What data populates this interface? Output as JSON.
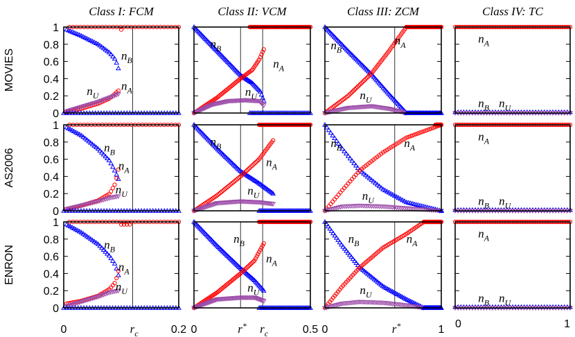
{
  "chart_data": {
    "type": "scatter",
    "grid": false,
    "legend": "none",
    "columns": [
      {
        "title": "Class I: FCM",
        "xlim": [
          0,
          0.2
        ],
        "xticks": [
          {
            "v": 0,
            "t": "0"
          },
          {
            "v": 0.12,
            "t": "r",
            "sub": "c"
          },
          {
            "v": 0.2,
            "t": "0.2"
          }
        ],
        "vlines": [
          0.12
        ]
      },
      {
        "title": "Class II: VCM",
        "xlim": [
          0,
          0.5
        ],
        "xticks": [
          {
            "v": 0,
            "t": "0"
          },
          {
            "v": 0.2,
            "t": "r",
            "sup": "*"
          },
          {
            "v": 0.295,
            "t": "r",
            "sub": "c"
          },
          {
            "v": 0.5,
            "t": "0.5"
          }
        ],
        "vlines": [
          0.2,
          0.295
        ]
      },
      {
        "title": "Class III: ZCM",
        "xlim": [
          0,
          1
        ],
        "xticks": [
          {
            "v": 0,
            "t": "0"
          },
          {
            "v": 0.6,
            "t": "r",
            "sup": "*"
          },
          {
            "v": 1,
            "t": "1"
          }
        ],
        "vlines": [
          0.6
        ]
      },
      {
        "title": "Class IV: TC",
        "xlim": [
          0,
          1
        ],
        "xticks": [
          {
            "v": 0,
            "t": "0"
          },
          {
            "v": 1,
            "t": "1"
          }
        ],
        "vlines": []
      }
    ],
    "rows": [
      "MOVIES",
      "AS2006",
      "ENRON"
    ],
    "ylim": [
      0,
      1
    ],
    "yticks": [
      "0",
      "0.2",
      "0.4",
      "0.6",
      "0.8",
      "1"
    ],
    "labels": {
      "nA": [
        "n",
        "A"
      ],
      "nB": [
        "n",
        "B"
      ],
      "nU": [
        "n",
        "U"
      ]
    },
    "colors": {
      "nA": "#ff0000",
      "nB": "#0000ff",
      "nU": "#9b4aa8"
    },
    "panels": [
      [
        {
          "nB": [
            [
              0.005,
              0.97
            ],
            [
              0.03,
              0.9
            ],
            [
              0.06,
              0.8
            ],
            [
              0.08,
              0.7
            ],
            [
              0.09,
              0.62
            ],
            [
              0.095,
              0.52
            ]
          ],
          "nA": [
            [
              0.005,
              0.01
            ],
            [
              0.03,
              0.05
            ],
            [
              0.06,
              0.11
            ],
            [
              0.08,
              0.17
            ],
            [
              0.095,
              0.26
            ]
          ],
          "nU": [
            [
              0.005,
              0.02
            ],
            [
              0.03,
              0.07
            ],
            [
              0.06,
              0.13
            ],
            [
              0.08,
              0.18
            ],
            [
              0.095,
              0.22
            ]
          ],
          "nA_upper": [
            [
              0.01,
              1
            ],
            [
              0.2,
              1
            ]
          ],
          "nB_lower": [
            [
              0.0,
              0.0
            ],
            [
              0.2,
              0.0
            ]
          ],
          "extra": [
            [
              0.1,
              0.97
            ]
          ]
        },
        {
          "nB": [
            [
              0,
              1
            ],
            [
              0.1,
              0.72
            ],
            [
              0.2,
              0.44
            ],
            [
              0.25,
              0.35
            ],
            [
              0.285,
              0.25
            ],
            [
              0.3,
              0.14
            ]
          ],
          "nA": [
            [
              0,
              0
            ],
            [
              0.1,
              0.18
            ],
            [
              0.2,
              0.4
            ],
            [
              0.25,
              0.5
            ],
            [
              0.28,
              0.62
            ],
            [
              0.3,
              0.74
            ]
          ],
          "nU": [
            [
              0,
              0
            ],
            [
              0.08,
              0.1
            ],
            [
              0.15,
              0.14
            ],
            [
              0.22,
              0.15
            ],
            [
              0.28,
              0.14
            ],
            [
              0.3,
              0.09
            ]
          ],
          "nA_upper": [
            [
              0.24,
              1
            ],
            [
              0.5,
              1
            ]
          ],
          "nB_lower": [
            [
              0.24,
              0
            ],
            [
              0.5,
              0
            ]
          ]
        },
        {
          "nB": [
            [
              0,
              1
            ],
            [
              0.2,
              0.72
            ],
            [
              0.4,
              0.45
            ],
            [
              0.55,
              0.22
            ],
            [
              0.7,
              0.0
            ]
          ],
          "nA": [
            [
              0,
              0
            ],
            [
              0.2,
              0.2
            ],
            [
              0.4,
              0.46
            ],
            [
              0.55,
              0.72
            ],
            [
              0.7,
              1
            ]
          ],
          "nU": [
            [
              0,
              0
            ],
            [
              0.2,
              0.06
            ],
            [
              0.4,
              0.08
            ],
            [
              0.55,
              0.05
            ],
            [
              0.7,
              0
            ]
          ],
          "nA_upper": [
            [
              0.7,
              1
            ],
            [
              1,
              1
            ]
          ],
          "nB_lower": [
            [
              0.7,
              0
            ],
            [
              1,
              0
            ]
          ]
        },
        {
          "nA_upper": [
            [
              0,
              1
            ],
            [
              1,
              1
            ]
          ],
          "nB_lower": [
            [
              0,
              0.01
            ],
            [
              1,
              0.01
            ]
          ],
          "nU_lower": [
            [
              0,
              0
            ],
            [
              1,
              0
            ]
          ]
        }
      ],
      [
        {
          "nB": [
            [
              0.005,
              0.97
            ],
            [
              0.03,
              0.88
            ],
            [
              0.06,
              0.72
            ],
            [
              0.08,
              0.58
            ],
            [
              0.09,
              0.45
            ],
            [
              0.095,
              0.37
            ]
          ],
          "nA": [
            [
              0.005,
              0.02
            ],
            [
              0.03,
              0.06
            ],
            [
              0.06,
              0.12
            ],
            [
              0.08,
              0.2
            ],
            [
              0.09,
              0.32
            ],
            [
              0.095,
              0.48
            ]
          ],
          "nU": [
            [
              0.005,
              0.02
            ],
            [
              0.03,
              0.06
            ],
            [
              0.06,
              0.11
            ],
            [
              0.08,
              0.15
            ],
            [
              0.095,
              0.17
            ]
          ],
          "nA_upper": [
            [
              0.01,
              1
            ],
            [
              0.2,
              1
            ]
          ],
          "nB_lower": [
            [
              0,
              0
            ],
            [
              0.2,
              0
            ]
          ]
        },
        {
          "nB": [
            [
              0,
              1
            ],
            [
              0.1,
              0.72
            ],
            [
              0.2,
              0.46
            ],
            [
              0.28,
              0.32
            ],
            [
              0.34,
              0.2
            ]
          ],
          "nA": [
            [
              0,
              0
            ],
            [
              0.1,
              0.18
            ],
            [
              0.2,
              0.4
            ],
            [
              0.28,
              0.6
            ],
            [
              0.34,
              0.82
            ]
          ],
          "nU": [
            [
              0,
              0
            ],
            [
              0.1,
              0.09
            ],
            [
              0.2,
              0.11
            ],
            [
              0.28,
              0.1
            ],
            [
              0.34,
              0.08
            ]
          ],
          "nA_upper": [
            [
              0.28,
              1
            ],
            [
              0.5,
              1
            ]
          ],
          "nB_lower": [
            [
              0.28,
              0
            ],
            [
              0.5,
              0
            ]
          ]
        },
        {
          "nB": [
            [
              0,
              1
            ],
            [
              0.15,
              0.72
            ],
            [
              0.3,
              0.47
            ],
            [
              0.5,
              0.25
            ],
            [
              0.7,
              0.1
            ],
            [
              1,
              0
            ]
          ],
          "nA": [
            [
              0,
              0
            ],
            [
              0.15,
              0.24
            ],
            [
              0.3,
              0.47
            ],
            [
              0.5,
              0.68
            ],
            [
              0.7,
              0.85
            ],
            [
              1,
              1
            ]
          ],
          "nU": [
            [
              0,
              0
            ],
            [
              0.15,
              0.05
            ],
            [
              0.3,
              0.06
            ],
            [
              0.5,
              0.05
            ],
            [
              0.7,
              0.03
            ],
            [
              1,
              0
            ]
          ],
          "nA_upper": [
            [
              0.95,
              1
            ],
            [
              1,
              1
            ]
          ],
          "nB_lower": [
            [
              1,
              0
            ],
            [
              1,
              0
            ]
          ]
        },
        {
          "nA_upper": [
            [
              0,
              1
            ],
            [
              1,
              1
            ]
          ],
          "nB_lower": [
            [
              0,
              0.01
            ],
            [
              1,
              0.01
            ]
          ],
          "nU_lower": [
            [
              0,
              0
            ],
            [
              1,
              0
            ]
          ]
        }
      ],
      [
        {
          "nB": [
            [
              0.005,
              0.97
            ],
            [
              0.03,
              0.88
            ],
            [
              0.06,
              0.74
            ],
            [
              0.08,
              0.6
            ],
            [
              0.09,
              0.5
            ],
            [
              0.095,
              0.38
            ]
          ],
          "nA": [
            [
              0.005,
              0.05
            ],
            [
              0.03,
              0.08
            ],
            [
              0.06,
              0.14
            ],
            [
              0.08,
              0.22
            ],
            [
              0.09,
              0.3
            ],
            [
              0.095,
              0.43
            ]
          ],
          "nU": [
            [
              0.005,
              0.02
            ],
            [
              0.03,
              0.07
            ],
            [
              0.06,
              0.13
            ],
            [
              0.08,
              0.18
            ],
            [
              0.095,
              0.2
            ]
          ],
          "nA_upper": [
            [
              0.01,
              1
            ],
            [
              0.2,
              1
            ]
          ],
          "nB_lower": [
            [
              0,
              0
            ],
            [
              0.2,
              0
            ]
          ],
          "extra": [
            [
              0.1,
              0.97
            ],
            [
              0.105,
              0.97
            ],
            [
              0.11,
              0.97
            ],
            [
              0.115,
              0.97
            ]
          ]
        },
        {
          "nB": [
            [
              0,
              1
            ],
            [
              0.1,
              0.72
            ],
            [
              0.2,
              0.46
            ],
            [
              0.26,
              0.32
            ],
            [
              0.3,
              0.2
            ]
          ],
          "nA": [
            [
              0,
              0
            ],
            [
              0.1,
              0.18
            ],
            [
              0.2,
              0.4
            ],
            [
              0.26,
              0.55
            ],
            [
              0.3,
              0.75
            ]
          ],
          "nU": [
            [
              0,
              0
            ],
            [
              0.1,
              0.1
            ],
            [
              0.2,
              0.12
            ],
            [
              0.26,
              0.12
            ],
            [
              0.3,
              0.08
            ]
          ],
          "nA_upper": [
            [
              0.28,
              1
            ],
            [
              0.5,
              1
            ]
          ],
          "nB_lower": [
            [
              0.28,
              0
            ],
            [
              0.5,
              0
            ]
          ]
        },
        {
          "nB": [
            [
              0,
              1
            ],
            [
              0.15,
              0.72
            ],
            [
              0.3,
              0.47
            ],
            [
              0.5,
              0.25
            ],
            [
              0.7,
              0.1
            ],
            [
              0.85,
              0
            ]
          ],
          "nA": [
            [
              0,
              0
            ],
            [
              0.15,
              0.25
            ],
            [
              0.3,
              0.47
            ],
            [
              0.5,
              0.7
            ],
            [
              0.7,
              0.86
            ],
            [
              0.85,
              1
            ]
          ],
          "nU": [
            [
              0,
              0
            ],
            [
              0.15,
              0.05
            ],
            [
              0.3,
              0.07
            ],
            [
              0.5,
              0.06
            ],
            [
              0.7,
              0.03
            ],
            [
              0.85,
              0
            ]
          ],
          "nA_upper": [
            [
              0.85,
              1
            ],
            [
              1,
              1
            ]
          ],
          "nB_lower": [
            [
              0.85,
              0
            ],
            [
              1,
              0
            ]
          ]
        },
        {
          "nA_upper": [
            [
              0,
              1
            ],
            [
              1,
              1
            ]
          ],
          "nB_lower": [
            [
              0,
              0.01
            ],
            [
              1,
              0.01
            ]
          ],
          "nU_lower": [
            [
              0,
              0
            ],
            [
              1,
              0
            ]
          ]
        }
      ]
    ]
  }
}
